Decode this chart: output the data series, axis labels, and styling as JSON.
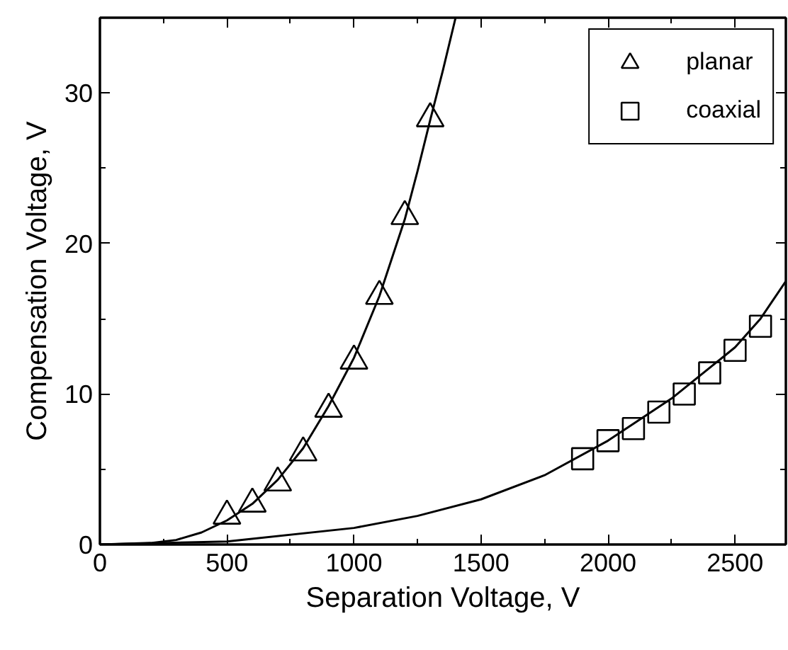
{
  "chart_data": {
    "type": "scatter",
    "xlabel": "Separation Voltage, V",
    "ylabel": "Compensation Voltage, V",
    "xlim": [
      0,
      2700
    ],
    "ylim": [
      0,
      35
    ],
    "xticks": [
      0,
      {
        "value": 250,
        "label": null
      },
      500,
      {
        "value": 750,
        "label": null
      },
      1000,
      {
        "value": 1250,
        "label": null
      },
      1500,
      {
        "value": 1750,
        "label": null
      },
      2000,
      {
        "value": 2250,
        "label": null
      },
      2500
    ],
    "yticks": [
      0,
      {
        "value": 5,
        "label": null
      },
      10,
      {
        "value": 15,
        "label": null
      },
      20,
      {
        "value": 25,
        "label": null
      },
      30
    ],
    "grid": false,
    "legend": "top right",
    "series": [
      {
        "name": "planar",
        "marker": "triangle",
        "color": "#000000",
        "x": [
          500,
          600,
          700,
          800,
          900,
          1000,
          1100,
          1200,
          1300
        ],
        "values": [
          1.9,
          2.7,
          4.1,
          6.1,
          9.0,
          12.2,
          16.5,
          21.8,
          28.3
        ]
      },
      {
        "name": "coaxial",
        "marker": "square",
        "color": "#000000",
        "x": [
          1900,
          2000,
          2100,
          2200,
          2300,
          2400,
          2500,
          2600
        ],
        "values": [
          5.7,
          6.9,
          7.7,
          8.8,
          10.0,
          11.4,
          12.9,
          14.5
        ]
      },
      {
        "type": "line",
        "color": "#000000",
        "x": [
          0,
          200,
          300,
          400,
          500,
          600,
          700,
          800,
          900,
          1000,
          1100,
          1200,
          1250,
          1300,
          1350,
          1400
        ],
        "values": [
          0,
          0.1,
          0.3,
          0.8,
          1.6,
          2.7,
          4.3,
          6.4,
          9.2,
          12.4,
          16.5,
          21.6,
          24.8,
          28.2,
          31.5,
          35
        ]
      },
      {
        "type": "line",
        "color": "#000000",
        "x": [
          0,
          500,
          1000,
          1250,
          1500,
          1750,
          2000,
          2250,
          2500,
          2600,
          2700
        ],
        "values": [
          0,
          0.2,
          1.1,
          1.9,
          3.0,
          4.6,
          6.9,
          9.7,
          13.1,
          15.0,
          17.5
        ]
      }
    ]
  }
}
